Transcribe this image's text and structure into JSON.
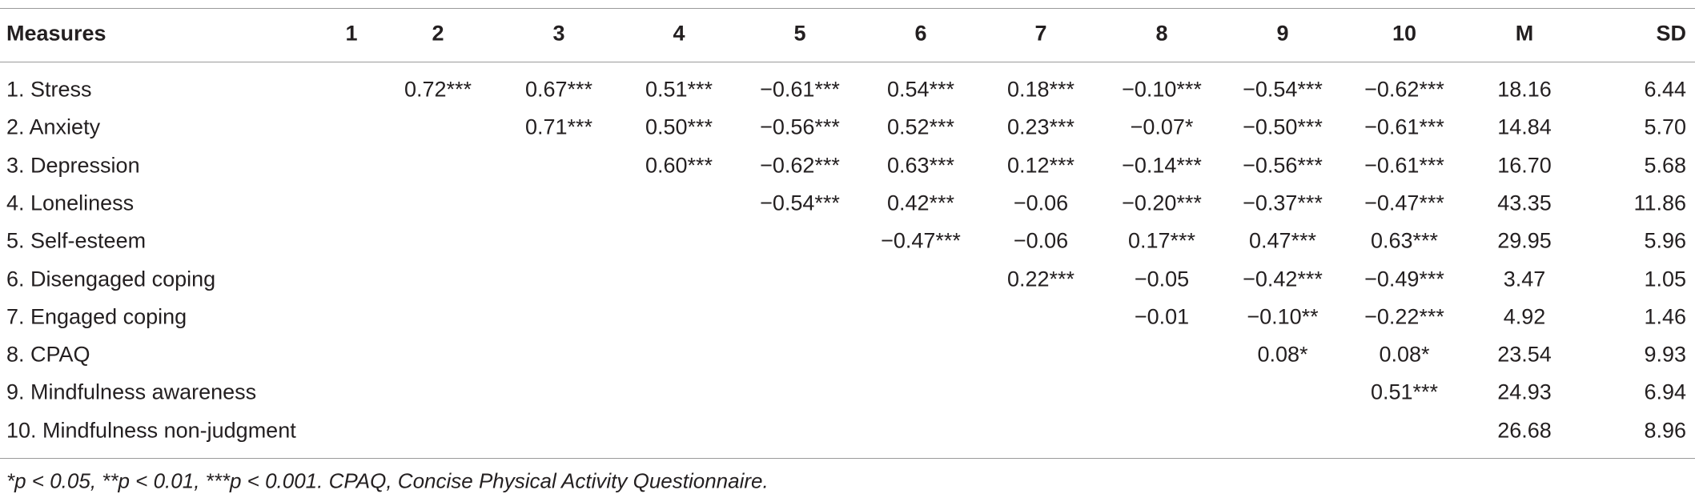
{
  "table": {
    "header": [
      "Measures",
      "1",
      "2",
      "3",
      "4",
      "5",
      "6",
      "7",
      "8",
      "9",
      "10",
      "M",
      "SD"
    ],
    "rows": [
      [
        "1. Stress",
        null,
        "0.72***",
        "0.67***",
        "0.51***",
        "−0.61***",
        "0.54***",
        "0.18***",
        "−0.10***",
        "−0.54***",
        "−0.62***",
        "18.16",
        "6.44"
      ],
      [
        "2. Anxiety",
        null,
        null,
        "0.71***",
        "0.50***",
        "−0.56***",
        "0.52***",
        "0.23***",
        "−0.07*",
        "−0.50***",
        "−0.61***",
        "14.84",
        "5.70"
      ],
      [
        "3. Depression",
        null,
        null,
        null,
        "0.60***",
        "−0.62***",
        "0.63***",
        "0.12***",
        "−0.14***",
        "−0.56***",
        "−0.61***",
        "16.70",
        "5.68"
      ],
      [
        "4. Loneliness",
        null,
        null,
        null,
        null,
        "−0.54***",
        "0.42***",
        "−0.06",
        "−0.20***",
        "−0.37***",
        "−0.47***",
        "43.35",
        "11.86"
      ],
      [
        "5. Self-esteem",
        null,
        null,
        null,
        null,
        null,
        "−0.47***",
        "−0.06",
        "0.17***",
        "0.47***",
        "0.63***",
        "29.95",
        "5.96"
      ],
      [
        "6. Disengaged coping",
        null,
        null,
        null,
        null,
        null,
        null,
        "0.22***",
        "−0.05",
        "−0.42***",
        "−0.49***",
        "3.47",
        "1.05"
      ],
      [
        "7. Engaged coping",
        null,
        null,
        null,
        null,
        null,
        null,
        null,
        "−0.01",
        "−0.10**",
        "−0.22***",
        "4.92",
        "1.46"
      ],
      [
        "8. CPAQ",
        null,
        null,
        null,
        null,
        null,
        null,
        null,
        null,
        "0.08*",
        "0.08*",
        "23.54",
        "9.93"
      ],
      [
        "9. Mindfulness awareness",
        null,
        null,
        null,
        null,
        null,
        null,
        null,
        null,
        null,
        "0.51***",
        "24.93",
        "6.94"
      ],
      [
        "10. Mindfulness non-judgment",
        null,
        null,
        null,
        null,
        null,
        null,
        null,
        null,
        null,
        null,
        "26.68",
        "8.96"
      ]
    ],
    "footnote": "*p < 0.05, **p < 0.01, ***p < 0.001. CPAQ, Concise Physical Activity Questionnaire."
  }
}
